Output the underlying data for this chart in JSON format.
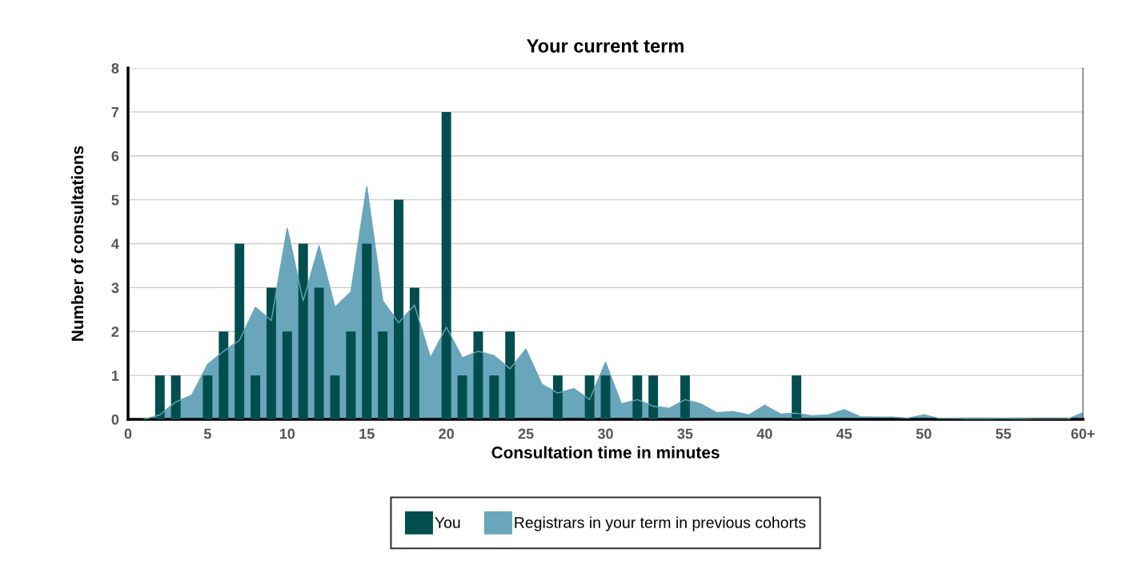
{
  "chart_data": {
    "type": "bar",
    "title": "Your current term",
    "xlabel": "Consultation time in minutes",
    "ylabel": "Number of consultations",
    "xlim": [
      0,
      60
    ],
    "xticks": [
      0,
      5,
      10,
      15,
      20,
      25,
      30,
      35,
      40,
      45,
      50,
      55,
      {
        "value": 60,
        "label": "60+"
      }
    ],
    "ylim": [
      0,
      8
    ],
    "yticks": [
      0,
      1,
      2,
      3,
      4,
      5,
      6,
      7,
      8
    ],
    "grid": "y",
    "legend": "bottom",
    "series": [
      {
        "name": "You",
        "color": "#024e4f",
        "x": [
          2,
          3,
          5,
          6,
          7,
          8,
          9,
          10,
          11,
          12,
          13,
          14,
          15,
          16,
          17,
          18,
          20,
          21,
          22,
          23,
          24,
          27,
          29,
          30,
          32,
          33,
          35,
          42
        ],
        "values": [
          1,
          1,
          1,
          2,
          4,
          1,
          3,
          2,
          4,
          3,
          1,
          2,
          4,
          2,
          5,
          3,
          7,
          1,
          2,
          1,
          2,
          1,
          1,
          1,
          1,
          1,
          1,
          1
        ]
      },
      {
        "name": "Registrars in your term in previous cohorts",
        "type": "area",
        "color": "#69a5bb",
        "x": [
          1,
          2,
          3,
          4,
          5,
          6,
          7,
          8,
          9,
          10,
          11,
          12,
          13,
          14,
          15,
          16,
          17,
          18,
          19,
          20,
          21,
          22,
          23,
          24,
          25,
          26,
          27,
          28,
          29,
          30,
          31,
          32,
          33,
          34,
          35,
          36,
          37,
          38,
          39,
          40,
          41,
          42,
          43,
          44,
          45,
          46,
          47,
          48,
          49,
          50,
          51,
          52,
          53,
          54,
          55,
          56,
          57,
          58,
          59,
          60
        ],
        "values": [
          0,
          0.1,
          0.4,
          0.55,
          1.25,
          1.55,
          1.8,
          2.55,
          2.25,
          4.35,
          2.7,
          3.95,
          2.55,
          2.9,
          5.3,
          2.7,
          2.2,
          2.6,
          1.4,
          2.1,
          1.4,
          1.55,
          1.45,
          1.15,
          1.6,
          0.8,
          0.6,
          0.7,
          0.45,
          1.3,
          0.35,
          0.45,
          0.3,
          0.25,
          0.45,
          0.35,
          0.15,
          0.18,
          0.1,
          0.32,
          0.12,
          0.14,
          0.08,
          0.1,
          0.22,
          0.06,
          0.05,
          0.05,
          0.03,
          0.1,
          0.02,
          0.02,
          0.01,
          0.01,
          0.02,
          0.01,
          0,
          0,
          0,
          0.15
        ]
      }
    ]
  }
}
